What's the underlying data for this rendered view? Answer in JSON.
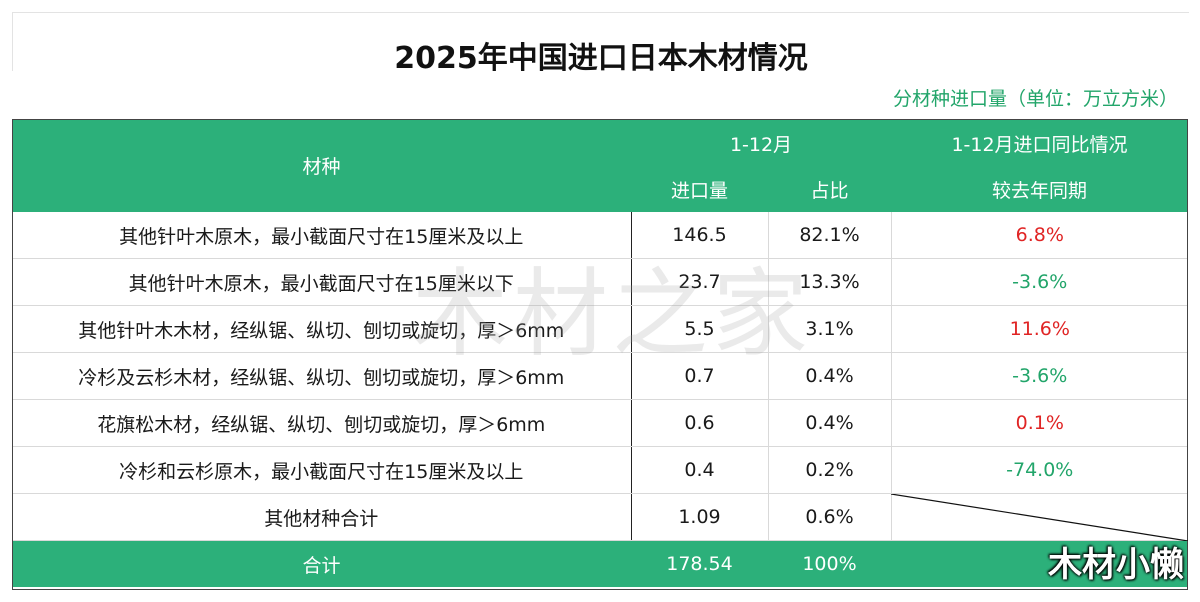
{
  "title": "2025年中国进口日本木材情况",
  "unit_note": "分材种进口量（单位：万立方米）",
  "header": {
    "col_material": "材种",
    "period": "1-12月",
    "yoy_group": "1-12月进口同比情况",
    "col_volume": "进口量",
    "col_share": "占比",
    "col_yoy": "较去年同期"
  },
  "rows": [
    {
      "material": "其他针叶木原木，最小截面尺寸在15厘米及以上",
      "volume": "146.5",
      "share": "82.1%",
      "yoy": "6.8%"
    },
    {
      "material": "其他针叶木原木，最小截面尺寸在15厘米以下",
      "volume": "23.7",
      "share": "13.3%",
      "yoy": "-3.6%"
    },
    {
      "material": "其他针叶木木材，经纵锯、纵切、刨切或旋切，厚＞6mm",
      "volume": "5.5",
      "share": "3.1%",
      "yoy": "11.6%"
    },
    {
      "material": "冷杉及云杉木材，经纵锯、纵切、刨切或旋切，厚＞6mm",
      "volume": "0.7",
      "share": "0.4%",
      "yoy": "-3.6%"
    },
    {
      "material": "花旗松木材，经纵锯、纵切、刨切或旋切，厚＞6mm",
      "volume": "0.6",
      "share": "0.4%",
      "yoy": "0.1%"
    },
    {
      "material": "冷杉和云杉原木，最小截面尺寸在15厘米及以上",
      "volume": "0.4",
      "share": "0.2%",
      "yoy": "-74.0%"
    },
    {
      "material": "其他材种合计",
      "volume": "1.09",
      "share": "0.6%",
      "yoy": ""
    }
  ],
  "total": {
    "label": "合计",
    "volume": "178.54",
    "share": "100%"
  },
  "watermark": "木材之家",
  "brand": "木材小懒",
  "colors": {
    "header_bg": "#2cb07a",
    "positive": "#e02424",
    "negative": "#22a56a"
  }
}
